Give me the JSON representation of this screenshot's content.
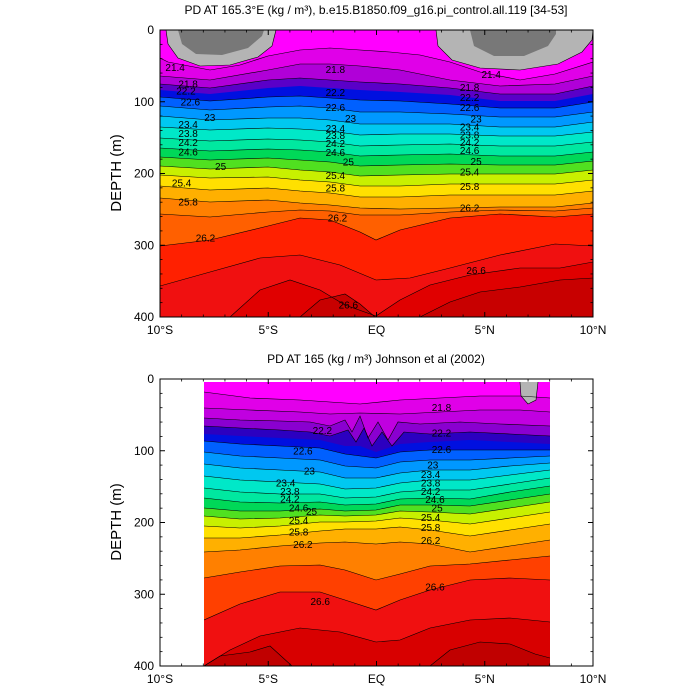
{
  "chart_data": [
    {
      "type": "contour",
      "title": "PD AT 165.3°E (kg / m³), b.e15.B1850.f09_g16.pi_control.all.119 [34-53]",
      "ylabel": "DEPTH (m)",
      "xlim": [
        -10,
        10
      ],
      "ylim": [
        0,
        400
      ],
      "y_inverted": true,
      "x_ticks": [
        -10,
        -5,
        0,
        5,
        10
      ],
      "x_tick_labels": [
        "10°S",
        "5°S",
        "EQ",
        "5°N",
        "10°N"
      ],
      "y_ticks": [
        0,
        100,
        200,
        300,
        400
      ],
      "y_tick_labels": [
        "0",
        "100",
        "200",
        "300",
        "400"
      ],
      "data_x_range": [
        -10,
        10
      ],
      "land_mask": "gray patches at surface near 9°S–5°S and 3°N–10°N",
      "contour_labels": [
        {
          "text": "21.4",
          "x": -9.3,
          "y": 52
        },
        {
          "text": "21.8",
          "x": -8.7,
          "y": 75
        },
        {
          "text": "22.2",
          "x": -8.8,
          "y": 85
        },
        {
          "text": "22.6",
          "x": -8.6,
          "y": 100
        },
        {
          "text": "23.4",
          "x": -8.7,
          "y": 132
        },
        {
          "text": "23.8",
          "x": -8.7,
          "y": 144
        },
        {
          "text": "24.2",
          "x": -8.7,
          "y": 157
        },
        {
          "text": "24.6",
          "x": -8.7,
          "y": 170
        },
        {
          "text": "23",
          "x": -7.7,
          "y": 122
        },
        {
          "text": "25",
          "x": -7.2,
          "y": 190
        },
        {
          "text": "25.4",
          "x": -9.0,
          "y": 213
        },
        {
          "text": "25.8",
          "x": -8.7,
          "y": 240
        },
        {
          "text": "26.2",
          "x": -7.9,
          "y": 290
        },
        {
          "text": "21.8",
          "x": -1.9,
          "y": 55
        },
        {
          "text": "22.2",
          "x": -1.9,
          "y": 87
        },
        {
          "text": "22.6",
          "x": -1.9,
          "y": 108
        },
        {
          "text": "23",
          "x": -1.2,
          "y": 123
        },
        {
          "text": "23.4",
          "x": -1.9,
          "y": 137
        },
        {
          "text": "23.8",
          "x": -1.9,
          "y": 147
        },
        {
          "text": "24.2",
          "x": -1.9,
          "y": 158
        },
        {
          "text": "24.6",
          "x": -1.9,
          "y": 171
        },
        {
          "text": "25",
          "x": -1.3,
          "y": 184
        },
        {
          "text": "25.4",
          "x": -1.9,
          "y": 203
        },
        {
          "text": "25.8",
          "x": -1.9,
          "y": 220
        },
        {
          "text": "26.2",
          "x": -1.8,
          "y": 262
        },
        {
          "text": "26.6",
          "x": -1.3,
          "y": 383
        },
        {
          "text": "21.4",
          "x": 5.3,
          "y": 62
        },
        {
          "text": "21.8",
          "x": 4.3,
          "y": 80
        },
        {
          "text": "22.2",
          "x": 4.3,
          "y": 94
        },
        {
          "text": "22.6",
          "x": 4.3,
          "y": 108
        },
        {
          "text": "23",
          "x": 4.6,
          "y": 124
        },
        {
          "text": "23.4",
          "x": 4.3,
          "y": 135
        },
        {
          "text": "23.8",
          "x": 4.3,
          "y": 146
        },
        {
          "text": "24.2",
          "x": 4.3,
          "y": 157
        },
        {
          "text": "24.6",
          "x": 4.3,
          "y": 168
        },
        {
          "text": "25",
          "x": 4.6,
          "y": 183
        },
        {
          "text": "25.4",
          "x": 4.3,
          "y": 198
        },
        {
          "text": "25.8",
          "x": 4.3,
          "y": 218
        },
        {
          "text": "26.2",
          "x": 4.3,
          "y": 248
        },
        {
          "text": "26.6",
          "x": 4.6,
          "y": 335
        }
      ]
    },
    {
      "type": "contour",
      "title": "PD AT 165 (kg / m³) Johnson et al (2002)",
      "ylabel": "DEPTH (m)",
      "xlim": [
        -10,
        10
      ],
      "ylim": [
        0,
        400
      ],
      "y_inverted": true,
      "x_ticks": [
        -10,
        -5,
        0,
        5,
        10
      ],
      "x_tick_labels": [
        "10°S",
        "5°S",
        "EQ",
        "5°N",
        "10°N"
      ],
      "y_ticks": [
        0,
        100,
        200,
        300,
        400
      ],
      "y_tick_labels": [
        "0",
        "100",
        "200",
        "300",
        "400"
      ],
      "data_x_range": [
        -8,
        8
      ],
      "data_y_range": [
        5,
        400
      ],
      "land_mask": "small gray patch at surface near 6.5°N–7.5°N",
      "contour_labels": [
        {
          "text": "21.8",
          "x": 3.0,
          "y": 40
        },
        {
          "text": "22.2",
          "x": -2.5,
          "y": 72
        },
        {
          "text": "22.2",
          "x": 3.0,
          "y": 75
        },
        {
          "text": "22.6",
          "x": -3.4,
          "y": 100
        },
        {
          "text": "22.6",
          "x": 3.0,
          "y": 98
        },
        {
          "text": "23",
          "x": -3.1,
          "y": 128
        },
        {
          "text": "23",
          "x": 2.6,
          "y": 120
        },
        {
          "text": "23.4",
          "x": -4.2,
          "y": 145
        },
        {
          "text": "23.4",
          "x": 2.5,
          "y": 133
        },
        {
          "text": "23.8",
          "x": -4.0,
          "y": 157
        },
        {
          "text": "23.8",
          "x": 2.5,
          "y": 145
        },
        {
          "text": "24.2",
          "x": -4.0,
          "y": 167
        },
        {
          "text": "24.2",
          "x": 2.5,
          "y": 157
        },
        {
          "text": "24.6",
          "x": -3.6,
          "y": 180
        },
        {
          "text": "24.6",
          "x": 2.7,
          "y": 168
        },
        {
          "text": "25",
          "x": -3.0,
          "y": 185
        },
        {
          "text": "25",
          "x": 2.8,
          "y": 180
        },
        {
          "text": "25.4",
          "x": -3.6,
          "y": 197
        },
        {
          "text": "25.4",
          "x": 2.5,
          "y": 193
        },
        {
          "text": "25.8",
          "x": -3.6,
          "y": 213
        },
        {
          "text": "25.8",
          "x": 2.5,
          "y": 207
        },
        {
          "text": "26.2",
          "x": -3.4,
          "y": 231
        },
        {
          "text": "26.2",
          "x": 2.5,
          "y": 225
        },
        {
          "text": "26.6",
          "x": -2.6,
          "y": 310
        },
        {
          "text": "26.6",
          "x": 2.7,
          "y": 290
        }
      ]
    }
  ]
}
